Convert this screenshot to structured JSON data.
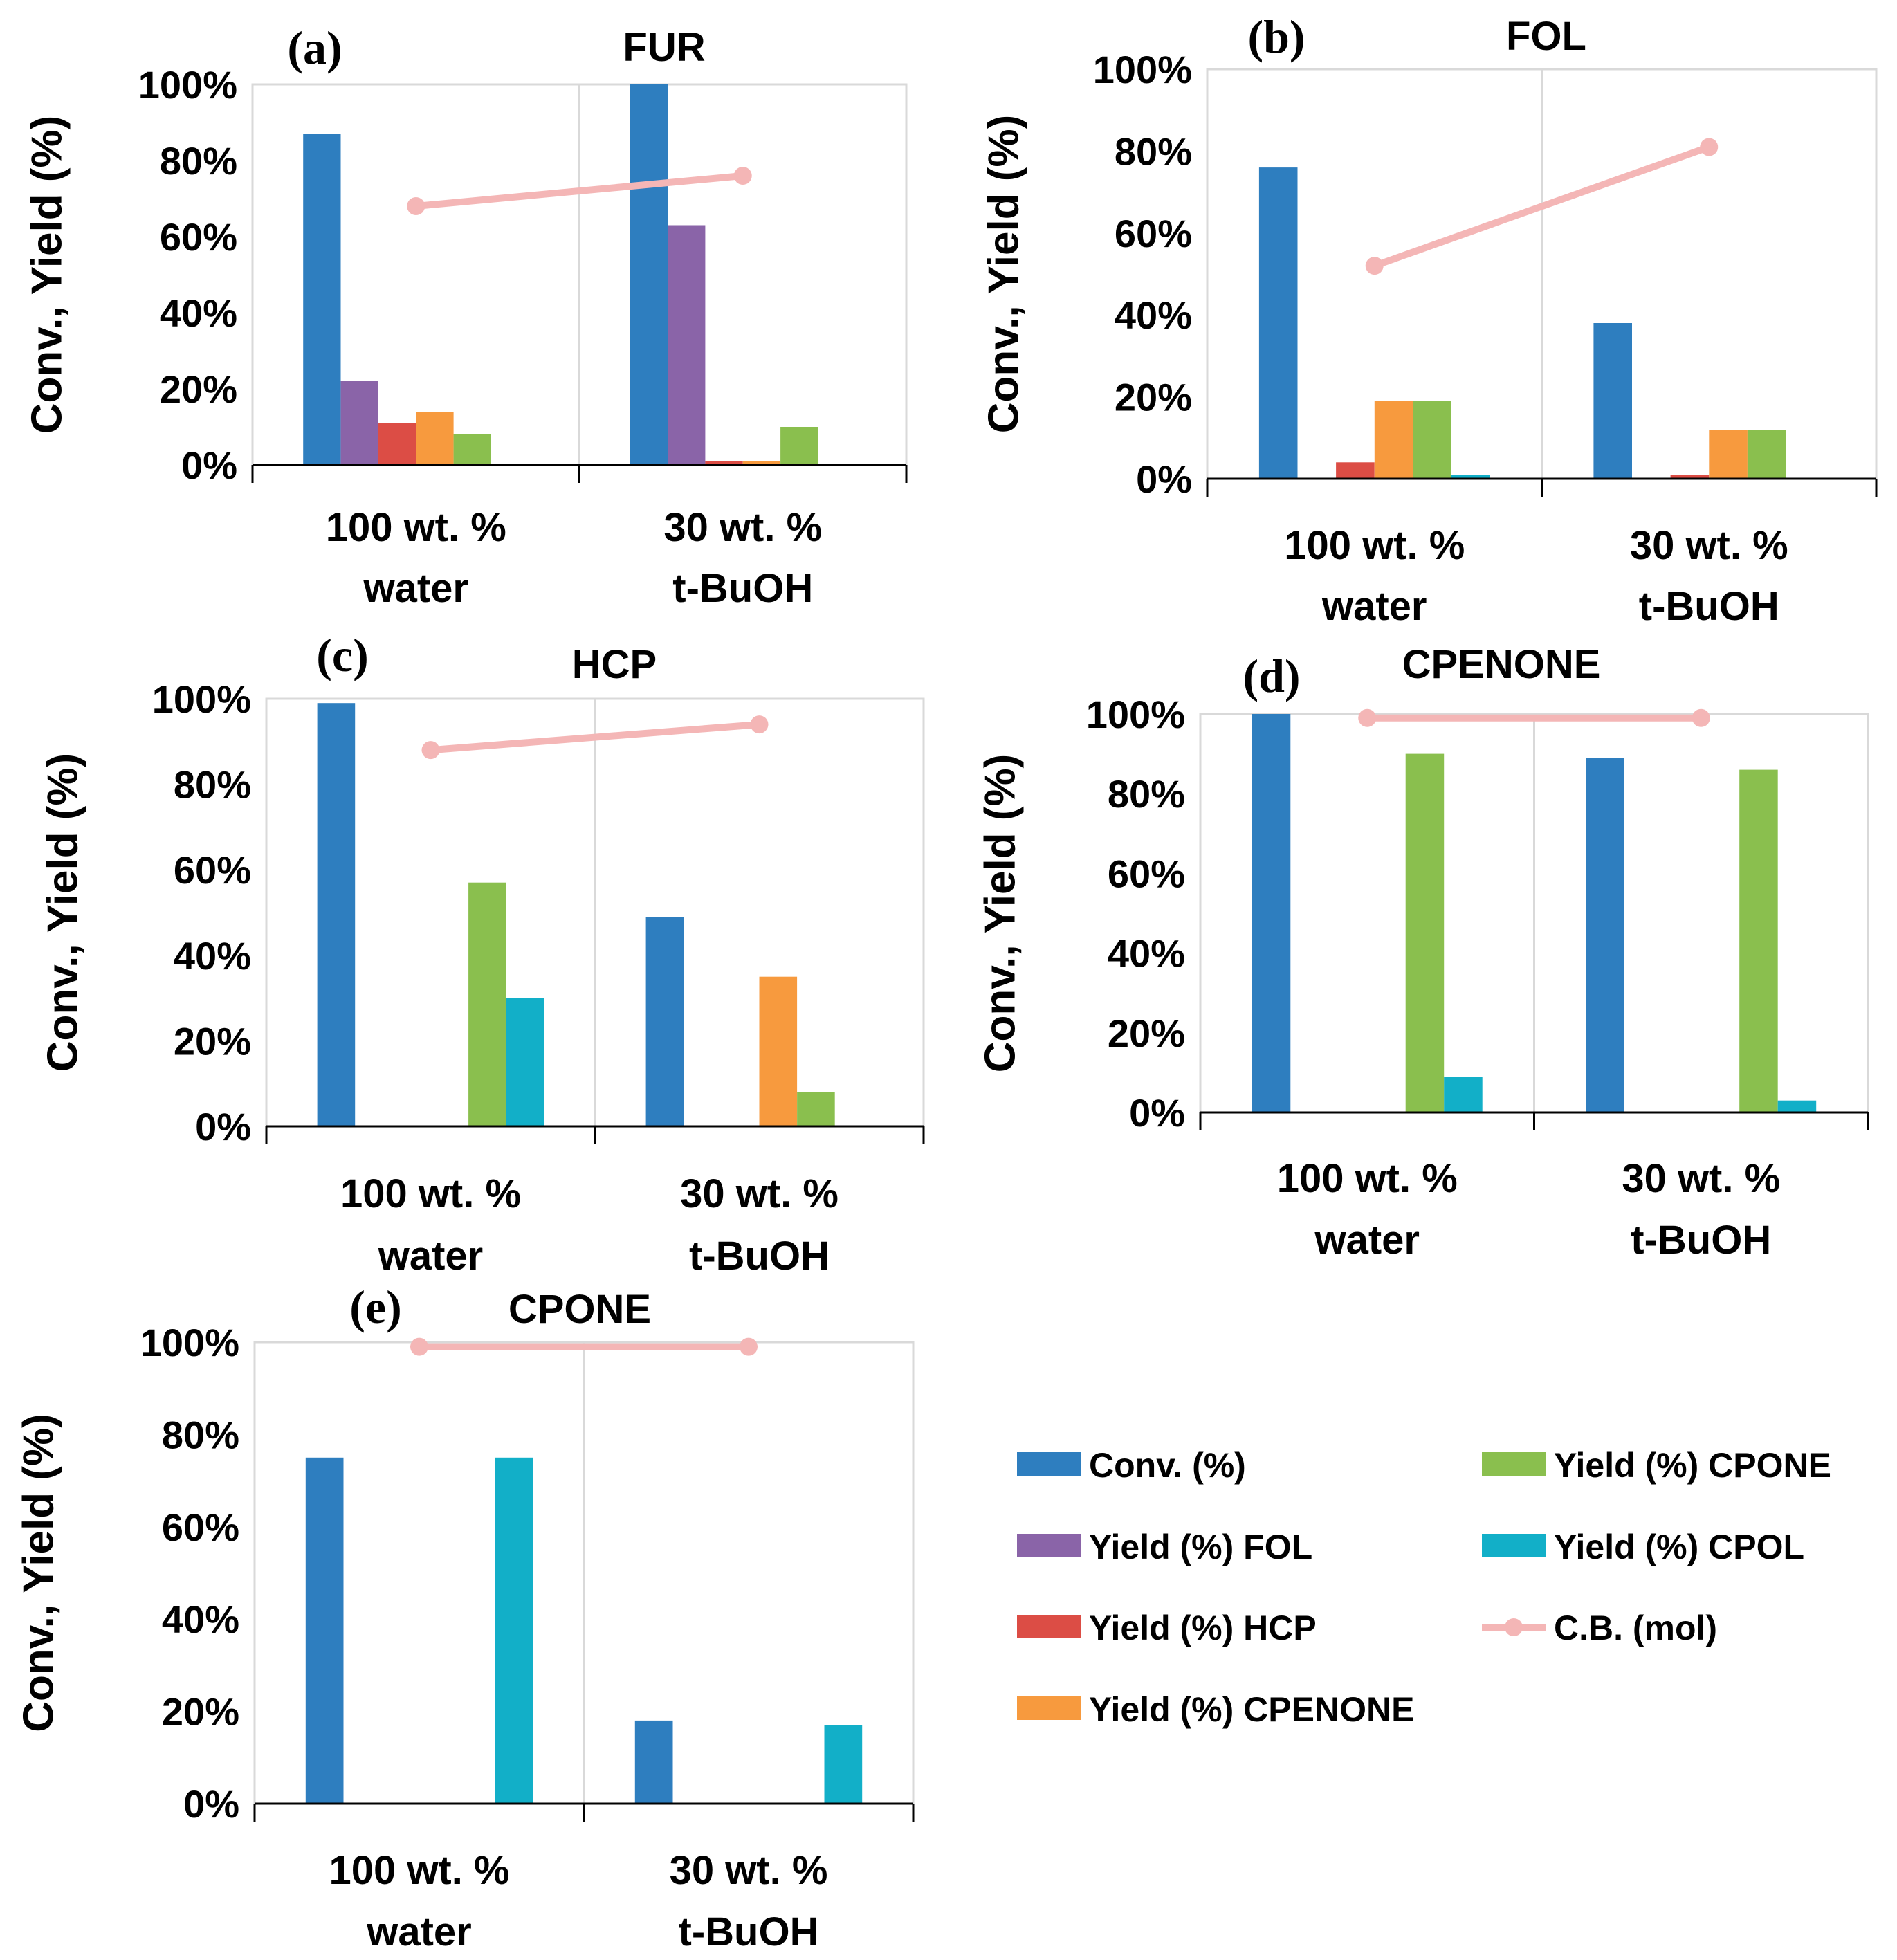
{
  "figure": {
    "y_axis_label": "Conv., Yield (%)",
    "y_ticks": [
      "0%",
      "20%",
      "40%",
      "60%",
      "80%",
      "100%"
    ],
    "categories": [
      {
        "line1": "100 wt. %",
        "line2": "water"
      },
      {
        "line1": "30 wt. %",
        "line2": "t-BuOH"
      }
    ]
  },
  "legend": {
    "items": [
      {
        "key": "conv",
        "label": "Conv. (%)",
        "kind": "bar"
      },
      {
        "key": "fol",
        "label": "Yield (%) FOL",
        "kind": "bar"
      },
      {
        "key": "hcp",
        "label": "Yield (%) HCP",
        "kind": "bar"
      },
      {
        "key": "cpenone",
        "label": "Yield (%) CPENONE",
        "kind": "bar"
      },
      {
        "key": "cpone",
        "label": "Yield (%) CPONE",
        "kind": "bar"
      },
      {
        "key": "cpol",
        "label": "Yield (%) CPOL",
        "kind": "bar"
      },
      {
        "key": "cb",
        "label": "C.B. (mol)",
        "kind": "line"
      }
    ]
  },
  "colors": {
    "conv": "#2e7ebf",
    "fol": "#8a64a8",
    "hcp": "#dc4d45",
    "cpenone": "#f79a3e",
    "cpone": "#8abf4e",
    "cpol": "#12afc8",
    "cb": "#f4b6b6"
  },
  "chart_data": [
    {
      "panel": "(a)",
      "title": "FUR",
      "type": "bar",
      "categories": [
        "100 wt. % water",
        "30 wt. % t-BuOH"
      ],
      "ylim": [
        0,
        100
      ],
      "ylabel": "Conv., Yield (%)",
      "series": [
        {
          "key": "conv",
          "name": "Conv. (%)",
          "values": [
            87,
            100
          ]
        },
        {
          "key": "fol",
          "name": "Yield (%) FOL",
          "values": [
            22,
            63
          ]
        },
        {
          "key": "hcp",
          "name": "Yield (%) HCP",
          "values": [
            11,
            1
          ]
        },
        {
          "key": "cpenone",
          "name": "Yield (%) CPENONE",
          "values": [
            14,
            1
          ]
        },
        {
          "key": "cpone",
          "name": "Yield (%) CPONE",
          "values": [
            8,
            10
          ]
        },
        {
          "key": "cpol",
          "name": "Yield (%) CPOL",
          "values": [
            0,
            0
          ]
        }
      ],
      "line": {
        "key": "cb",
        "name": "C.B. (mol)",
        "values": [
          68,
          76
        ]
      }
    },
    {
      "panel": "(b)",
      "title": "FOL",
      "type": "bar",
      "categories": [
        "100 wt. % water",
        "30 wt. % t-BuOH"
      ],
      "ylim": [
        0,
        100
      ],
      "ylabel": "Conv., Yield (%)",
      "series": [
        {
          "key": "conv",
          "name": "Conv. (%)",
          "values": [
            76,
            38
          ]
        },
        {
          "key": "fol",
          "name": "Yield (%) FOL",
          "values": [
            0,
            0
          ]
        },
        {
          "key": "hcp",
          "name": "Yield (%) HCP",
          "values": [
            4,
            1
          ]
        },
        {
          "key": "cpenone",
          "name": "Yield (%) CPENONE",
          "values": [
            19,
            12
          ]
        },
        {
          "key": "cpone",
          "name": "Yield (%) CPONE",
          "values": [
            19,
            12
          ]
        },
        {
          "key": "cpol",
          "name": "Yield (%) CPOL",
          "values": [
            1,
            0
          ]
        }
      ],
      "line": {
        "key": "cb",
        "name": "C.B. (mol)",
        "values": [
          52,
          81
        ]
      }
    },
    {
      "panel": "(c)",
      "title": "HCP",
      "type": "bar",
      "categories": [
        "100 wt. % water",
        "30 wt. % t-BuOH"
      ],
      "ylim": [
        0,
        100
      ],
      "ylabel": "Conv., Yield (%)",
      "series": [
        {
          "key": "conv",
          "name": "Conv. (%)",
          "values": [
            99,
            49
          ]
        },
        {
          "key": "fol",
          "name": "Yield (%) FOL",
          "values": [
            0,
            0
          ]
        },
        {
          "key": "hcp",
          "name": "Yield (%) HCP",
          "values": [
            0,
            0
          ]
        },
        {
          "key": "cpenone",
          "name": "Yield (%) CPENONE",
          "values": [
            0,
            35
          ]
        },
        {
          "key": "cpone",
          "name": "Yield (%) CPONE",
          "values": [
            57,
            8
          ]
        },
        {
          "key": "cpol",
          "name": "Yield (%) CPOL",
          "values": [
            30,
            0
          ]
        }
      ],
      "line": {
        "key": "cb",
        "name": "C.B. (mol)",
        "values": [
          88,
          94
        ]
      }
    },
    {
      "panel": "(d)",
      "title": "CPENONE",
      "type": "bar",
      "categories": [
        "100 wt. % water",
        "30 wt. % t-BuOH"
      ],
      "ylim": [
        0,
        100
      ],
      "ylabel": "Conv., Yield (%)",
      "series": [
        {
          "key": "conv",
          "name": "Conv. (%)",
          "values": [
            100,
            89
          ]
        },
        {
          "key": "fol",
          "name": "Yield (%) FOL",
          "values": [
            0,
            0
          ]
        },
        {
          "key": "hcp",
          "name": "Yield (%) HCP",
          "values": [
            0,
            0
          ]
        },
        {
          "key": "cpenone",
          "name": "Yield (%) CPENONE",
          "values": [
            0,
            0
          ]
        },
        {
          "key": "cpone",
          "name": "Yield (%) CPONE",
          "values": [
            90,
            86
          ]
        },
        {
          "key": "cpol",
          "name": "Yield (%) CPOL",
          "values": [
            9,
            3
          ]
        }
      ],
      "line": {
        "key": "cb",
        "name": "C.B. (mol)",
        "values": [
          99,
          99
        ]
      }
    },
    {
      "panel": "(e)",
      "title": "CPONE",
      "type": "bar",
      "categories": [
        "100 wt. % water",
        "30 wt. % t-BuOH"
      ],
      "ylim": [
        0,
        100
      ],
      "ylabel": "Conv., Yield (%)",
      "series": [
        {
          "key": "conv",
          "name": "Conv. (%)",
          "values": [
            75,
            18
          ]
        },
        {
          "key": "fol",
          "name": "Yield (%) FOL",
          "values": [
            0,
            0
          ]
        },
        {
          "key": "hcp",
          "name": "Yield (%) HCP",
          "values": [
            0,
            0
          ]
        },
        {
          "key": "cpenone",
          "name": "Yield (%) CPENONE",
          "values": [
            0,
            0
          ]
        },
        {
          "key": "cpone",
          "name": "Yield (%) CPONE",
          "values": [
            0,
            0
          ]
        },
        {
          "key": "cpol",
          "name": "Yield (%) CPOL",
          "values": [
            75,
            17
          ]
        }
      ],
      "line": {
        "key": "cb",
        "name": "C.B. (mol)",
        "values": [
          99,
          99
        ]
      }
    }
  ]
}
